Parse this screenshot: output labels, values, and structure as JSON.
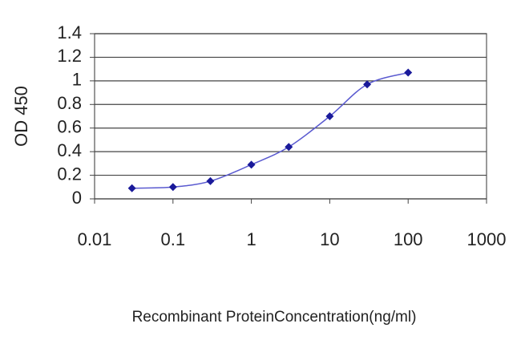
{
  "chart_data": {
    "type": "line",
    "x_label": "Recombinant ProteinConcentration(ng/ml)",
    "y_label": "OD 450",
    "x": [
      0.03,
      0.1,
      0.3,
      1,
      3,
      10,
      30,
      100
    ],
    "series": [
      {
        "name": "OD 450",
        "color": "#1a1a9a",
        "line_color": "#5a5ad0",
        "values": [
          0.09,
          0.1,
          0.15,
          0.29,
          0.44,
          0.7,
          0.97,
          1.07
        ]
      }
    ],
    "xscale": "log",
    "xlim": [
      0.01,
      1000
    ],
    "xticks": [
      0.01,
      0.1,
      1,
      10,
      100,
      1000
    ],
    "ylim": [
      0,
      1.4
    ],
    "yticks": [
      0,
      0.2,
      0.4,
      0.6,
      0.8,
      1,
      1.2,
      1.4
    ],
    "grid": true
  }
}
